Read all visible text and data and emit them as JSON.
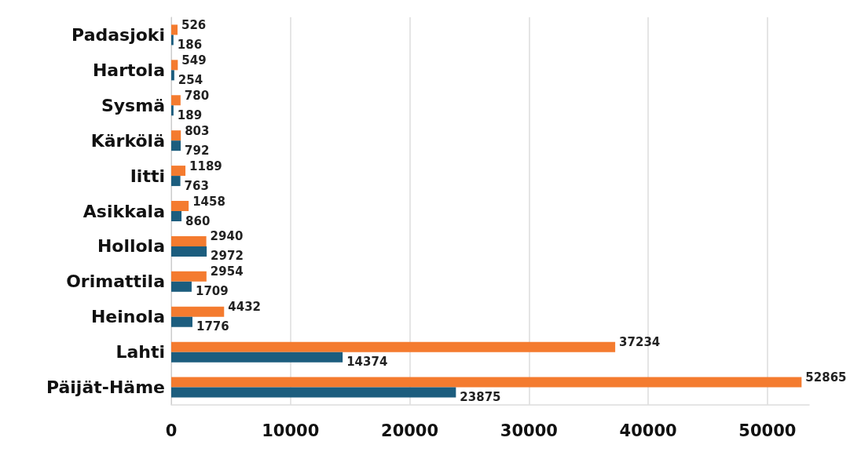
{
  "chart_data": {
    "type": "bar",
    "orientation": "horizontal",
    "categories": [
      "Padasjoki",
      "Hartola",
      "Sysmä",
      "Kärkölä",
      "Iitti",
      "Asikkala",
      "Hollola",
      "Orimattila",
      "Heinola",
      "Lahti",
      "Päijät-Häme"
    ],
    "series": [
      {
        "color": "#f47b2f",
        "values": [
          526,
          549,
          780,
          803,
          1189,
          1458,
          2940,
          2954,
          4432,
          37234,
          52865
        ]
      },
      {
        "color": "#1c5d7e",
        "values": [
          186,
          254,
          189,
          792,
          763,
          860,
          2972,
          1709,
          1776,
          14374,
          23875
        ]
      }
    ],
    "xlim": [
      0,
      53500
    ],
    "xticks": [
      0,
      10000,
      20000,
      30000,
      40000,
      50000
    ],
    "grid": "x",
    "data_labels": true
  }
}
